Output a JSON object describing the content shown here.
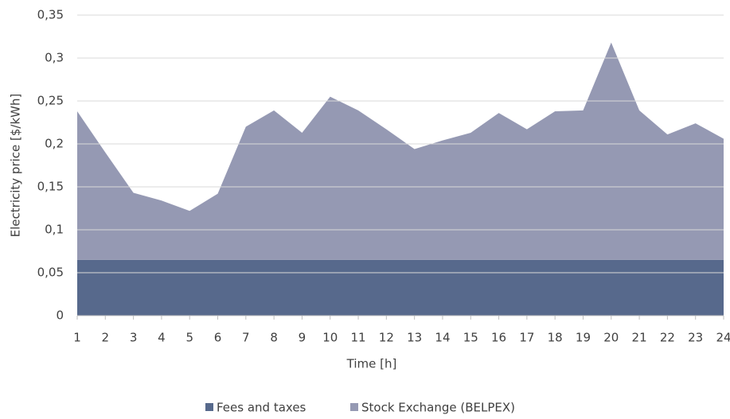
{
  "chart_data": {
    "type": "stacked_area",
    "x": [
      1,
      2,
      3,
      4,
      5,
      6,
      7,
      8,
      9,
      10,
      11,
      12,
      13,
      14,
      15,
      16,
      17,
      18,
      19,
      20,
      21,
      22,
      23,
      24
    ],
    "xlim": [
      1,
      24
    ],
    "xticks": [
      1,
      2,
      3,
      4,
      5,
      6,
      7,
      8,
      9,
      10,
      11,
      12,
      13,
      14,
      15,
      16,
      17,
      18,
      19,
      20,
      21,
      22,
      23,
      24
    ],
    "ylim": [
      0,
      0.35
    ],
    "yticks": [
      0,
      {
        "value": 0.05,
        "label": "0,05"
      },
      {
        "value": 0.1,
        "label": "0,1"
      },
      {
        "value": 0.15,
        "label": "0,15"
      },
      {
        "value": 0.2,
        "label": "0,2"
      },
      {
        "value": 0.25,
        "label": "0,25"
      },
      {
        "value": 0.3,
        "label": "0,3"
      },
      {
        "value": 0.35,
        "label": "0,35"
      }
    ],
    "xlabel": "Time [h]",
    "ylabel": "Electricity price [$/kWh]",
    "grid": true,
    "legend": "bottom",
    "series": [
      {
        "name": "Fees and taxes",
        "color": "#57698c",
        "values": [
          0.065,
          0.065,
          0.065,
          0.065,
          0.065,
          0.065,
          0.065,
          0.065,
          0.065,
          0.065,
          0.065,
          0.065,
          0.065,
          0.065,
          0.065,
          0.065,
          0.065,
          0.065,
          0.065,
          0.065,
          0.065,
          0.065,
          0.065,
          0.065
        ]
      },
      {
        "name": "Stock Exchange (BELPEX)",
        "color": "#9599b3",
        "values": [
          0.173,
          0.125,
          0.078,
          0.069,
          0.057,
          0.077,
          0.155,
          0.174,
          0.148,
          0.19,
          0.174,
          0.152,
          0.129,
          0.139,
          0.148,
          0.171,
          0.152,
          0.173,
          0.174,
          0.253,
          0.174,
          0.146,
          0.159,
          0.141
        ]
      }
    ]
  }
}
